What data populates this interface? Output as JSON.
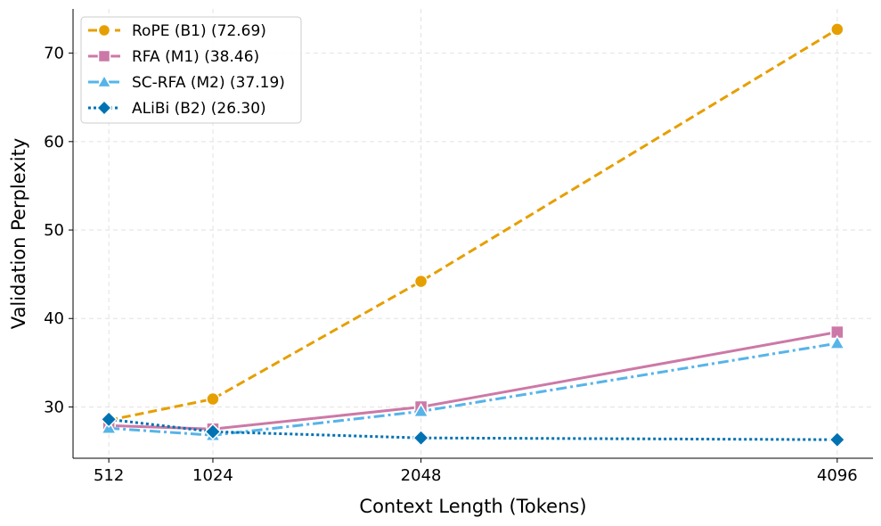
{
  "chart_data": {
    "type": "line",
    "title": "",
    "xlabel": "Context Length (Tokens)",
    "ylabel": "Validation Perplexity",
    "x": [
      512,
      1024,
      2048,
      4096
    ],
    "x_tick_labels": [
      "512",
      "1024",
      "2048",
      "4096"
    ],
    "y_ticks": [
      30,
      40,
      50,
      60,
      70
    ],
    "y_tick_labels": [
      "30",
      "40",
      "50",
      "60",
      "70"
    ],
    "xlim": [
      336,
      4272
    ],
    "ylim": [
      24.2,
      75.0
    ],
    "grid": true,
    "legend_position": "top-left",
    "series": [
      {
        "name": "RoPE (B1) (72.69)",
        "values": [
          28.5,
          30.9,
          44.2,
          72.69
        ],
        "color": "#E69F00",
        "line_style": "dashed",
        "marker": "circle"
      },
      {
        "name": "RFA (M1) (38.46)",
        "values": [
          27.9,
          27.5,
          30.0,
          38.46
        ],
        "color": "#CC79A7",
        "line_style": "solid",
        "marker": "square"
      },
      {
        "name": "SC-RFA (M2) (37.19)",
        "values": [
          27.6,
          26.8,
          29.5,
          37.19
        ],
        "color": "#56B4E9",
        "line_style": "dashdot",
        "marker": "triangle"
      },
      {
        "name": "ALiBi (B2) (26.30)",
        "values": [
          28.6,
          27.2,
          26.5,
          26.3
        ],
        "color": "#0072B2",
        "line_style": "dotted",
        "marker": "diamond"
      }
    ]
  }
}
